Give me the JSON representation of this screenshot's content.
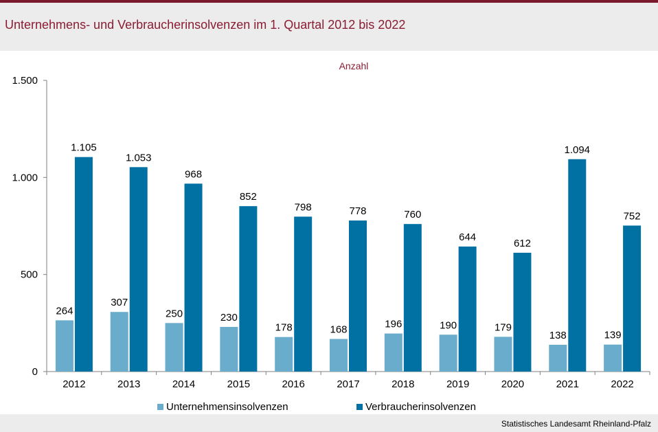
{
  "title": "Unternehmens- und Verbraucherinsolvenzen im 1. Quartal 2012 bis 2022",
  "source": "Statistisches Landesamt Rheinland-Pfalz",
  "colors": {
    "title": "#8a1c33",
    "rule": "#7a1a2c",
    "series_light": "#6aaccc",
    "series_dark": "#0071a2"
  },
  "chart_data": {
    "type": "bar",
    "title": "Unternehmens- und Verbraucherinsolvenzen im 1. Quartal 2012 bis 2022",
    "unit_label": "Anzahl",
    "xlabel": "",
    "ylabel": "Anzahl",
    "categories": [
      "2012",
      "2013",
      "2014",
      "2015",
      "2016",
      "2017",
      "2018",
      "2019",
      "2020",
      "2021",
      "2022"
    ],
    "series": [
      {
        "name": "Unternehmensinsolvenzen",
        "color": "#6aaccc",
        "values": [
          264,
          307,
          250,
          230,
          178,
          168,
          196,
          190,
          179,
          138,
          139
        ],
        "labels": [
          "264",
          "307",
          "250",
          "230",
          "178",
          "168",
          "196",
          "190",
          "179",
          "138",
          "139"
        ]
      },
      {
        "name": "Verbraucherinsolvenzen",
        "color": "#0071a2",
        "values": [
          1105,
          1053,
          968,
          852,
          798,
          778,
          760,
          644,
          612,
          1094,
          752
        ],
        "labels": [
          "1.105",
          "1.053",
          "968",
          "852",
          "798",
          "778",
          "760",
          "644",
          "612",
          "1.094",
          "752"
        ]
      }
    ],
    "ylim": [
      0,
      1500
    ],
    "yticks": [
      0,
      500,
      1000,
      1500
    ],
    "ytick_labels": [
      "0",
      "500",
      "1.000",
      "1.500"
    ],
    "grid": false,
    "legend_position": "bottom-center"
  }
}
